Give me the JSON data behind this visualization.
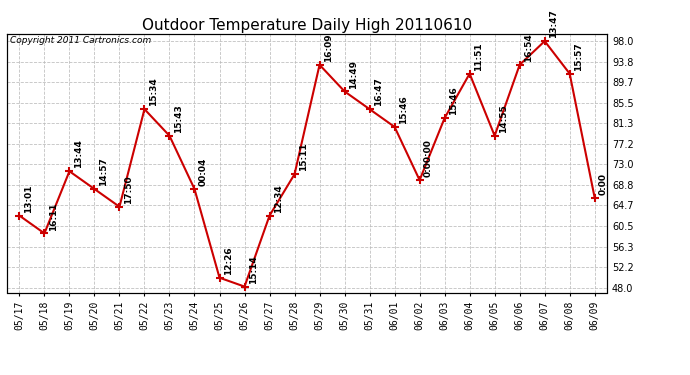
{
  "title": "Outdoor Temperature Daily High 20110610",
  "copyright_text": "Copyright 2011 Cartronics.com",
  "x_labels": [
    "05/17",
    "05/18",
    "05/19",
    "05/20",
    "05/21",
    "05/22",
    "05/23",
    "05/24",
    "05/25",
    "05/26",
    "05/27",
    "05/28",
    "05/29",
    "05/30",
    "05/31",
    "06/01",
    "06/02",
    "06/03",
    "06/04",
    "06/05",
    "06/06",
    "06/07",
    "06/08",
    "06/09"
  ],
  "y_values": [
    62.6,
    59.0,
    71.6,
    68.0,
    64.4,
    84.2,
    78.8,
    68.0,
    50.0,
    48.2,
    62.6,
    71.0,
    93.2,
    87.8,
    84.2,
    80.6,
    69.8,
    82.4,
    91.4,
    78.8,
    93.2,
    98.0,
    91.4,
    66.2
  ],
  "time_labels": [
    "13:01",
    "16:11",
    "13:44",
    "14:57",
    "17:50",
    "15:34",
    "15:43",
    "00:04",
    "12:26",
    "15:14",
    "12:34",
    "15:11",
    "16:09",
    "14:49",
    "16:47",
    "15:46",
    "0:00:00",
    "15:46",
    "11:51",
    "14:55",
    "16:54",
    "13:47",
    "15:57",
    "0:00"
  ],
  "y_ticks": [
    48.0,
    52.2,
    56.3,
    60.5,
    64.7,
    68.8,
    73.0,
    77.2,
    81.3,
    85.5,
    89.7,
    93.8,
    98.0
  ],
  "ylim": [
    47.0,
    99.5
  ],
  "line_color": "#cc0000",
  "marker_color": "#cc0000",
  "bg_color": "#ffffff",
  "grid_color": "#bbbbbb",
  "title_fontsize": 11,
  "copyright_fontsize": 6.5,
  "tick_label_fontsize": 7,
  "point_label_fontsize": 6.5
}
